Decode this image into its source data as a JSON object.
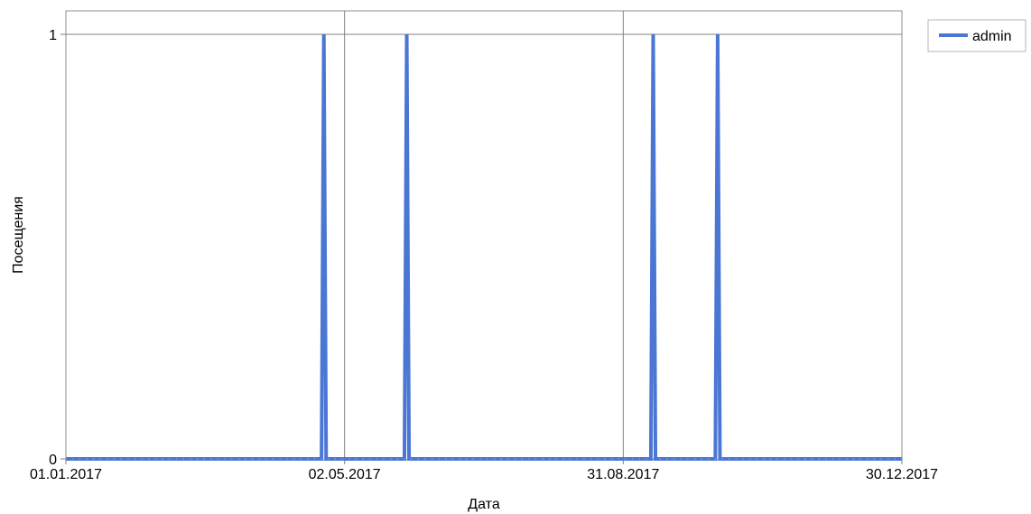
{
  "chart_data": {
    "type": "line",
    "title": "",
    "xlabel": "Дата",
    "ylabel": "Посещения",
    "x_axis_type": "date",
    "xlim": [
      "2017-01-01",
      "2017-12-30"
    ],
    "ylim": [
      0,
      1
    ],
    "x_ticks": [
      "01.01.2017",
      "02.05.2017",
      "31.08.2017",
      "30.12.2017"
    ],
    "y_ticks": [
      "0",
      "1"
    ],
    "grid": true,
    "legend_position": "top-right",
    "series": [
      {
        "name": "admin",
        "color": "#4a76d4",
        "peaks": [
          "2017-04-23",
          "2017-05-29",
          "2017-09-13",
          "2017-10-11"
        ],
        "baseline_value": 0,
        "peak_value": 1
      }
    ]
  }
}
